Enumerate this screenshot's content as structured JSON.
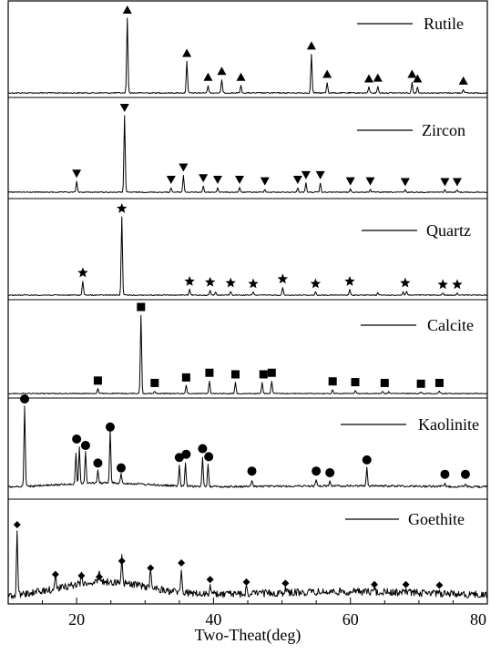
{
  "chart_data": {
    "type": "line",
    "xlabel": "Two-Theat(deg)",
    "ylabel": "",
    "xlim": [
      10,
      80
    ],
    "xticks": [
      20,
      40,
      60,
      80
    ],
    "panels": [
      {
        "name": "Rutile",
        "marker": "triangle-up",
        "peaks": [
          [
            27.4,
            1.0
          ],
          [
            36.1,
            0.42
          ],
          [
            39.2,
            0.1
          ],
          [
            41.2,
            0.18
          ],
          [
            44.0,
            0.1
          ],
          [
            54.3,
            0.52
          ],
          [
            56.6,
            0.14
          ],
          [
            62.7,
            0.08
          ],
          [
            64.0,
            0.09
          ],
          [
            69.0,
            0.14
          ],
          [
            69.8,
            0.08
          ],
          [
            76.5,
            0.05
          ]
        ],
        "markers": [
          [
            27.4,
            1.0
          ],
          [
            36.1,
            0.42
          ],
          [
            39.2,
            0.1
          ],
          [
            41.2,
            0.18
          ],
          [
            44.0,
            0.1
          ],
          [
            54.3,
            0.52
          ],
          [
            56.6,
            0.14
          ],
          [
            62.7,
            0.08
          ],
          [
            64.0,
            0.09
          ],
          [
            69.0,
            0.14
          ],
          [
            69.8,
            0.08
          ],
          [
            76.5,
            0.05
          ]
        ]
      },
      {
        "name": "Zircon",
        "marker": "triangle-down",
        "peaks": [
          [
            20.0,
            0.14
          ],
          [
            27.0,
            1.0
          ],
          [
            33.8,
            0.06
          ],
          [
            35.6,
            0.22
          ],
          [
            38.5,
            0.08
          ],
          [
            40.6,
            0.06
          ],
          [
            43.8,
            0.06
          ],
          [
            47.5,
            0.04
          ],
          [
            52.3,
            0.06
          ],
          [
            53.5,
            0.12
          ],
          [
            55.6,
            0.12
          ],
          [
            60.0,
            0.04
          ],
          [
            62.9,
            0.04
          ],
          [
            68.0,
            0.03
          ],
          [
            73.8,
            0.03
          ],
          [
            75.6,
            0.03
          ]
        ],
        "markers": [
          [
            20.0,
            0.14
          ],
          [
            27.0,
            1.0
          ],
          [
            33.8,
            0.06
          ],
          [
            35.6,
            0.22
          ],
          [
            38.5,
            0.08
          ],
          [
            40.6,
            0.06
          ],
          [
            43.8,
            0.06
          ],
          [
            47.5,
            0.04
          ],
          [
            52.3,
            0.06
          ],
          [
            53.5,
            0.12
          ],
          [
            55.6,
            0.12
          ],
          [
            60.0,
            0.04
          ],
          [
            62.9,
            0.04
          ],
          [
            68.0,
            0.03
          ],
          [
            73.8,
            0.03
          ],
          [
            75.6,
            0.03
          ]
        ]
      },
      {
        "name": "Quartz",
        "marker": "star",
        "peaks": [
          [
            20.9,
            0.18
          ],
          [
            26.6,
            1.0
          ],
          [
            36.5,
            0.07
          ],
          [
            39.5,
            0.06
          ],
          [
            40.3,
            0.04
          ],
          [
            42.5,
            0.05
          ],
          [
            45.8,
            0.04
          ],
          [
            50.1,
            0.1
          ],
          [
            54.9,
            0.04
          ],
          [
            59.9,
            0.07
          ],
          [
            64.0,
            0.03
          ],
          [
            67.7,
            0.04
          ],
          [
            68.2,
            0.05
          ],
          [
            73.5,
            0.03
          ],
          [
            75.6,
            0.03
          ]
        ],
        "markers": [
          [
            20.9,
            0.18
          ],
          [
            26.6,
            1.0
          ],
          [
            36.5,
            0.07
          ],
          [
            39.5,
            0.06
          ],
          [
            42.5,
            0.05
          ],
          [
            45.8,
            0.04
          ],
          [
            50.1,
            0.1
          ],
          [
            54.9,
            0.04
          ],
          [
            59.9,
            0.07
          ],
          [
            68.0,
            0.05
          ],
          [
            73.5,
            0.03
          ],
          [
            75.6,
            0.03
          ]
        ]
      },
      {
        "name": "Calcite",
        "marker": "square",
        "peaks": [
          [
            23.1,
            0.06
          ],
          [
            29.4,
            1.0
          ],
          [
            31.4,
            0.03
          ],
          [
            36.0,
            0.1
          ],
          [
            39.4,
            0.16
          ],
          [
            43.2,
            0.14
          ],
          [
            47.1,
            0.14
          ],
          [
            48.5,
            0.16
          ],
          [
            57.4,
            0.05
          ],
          [
            60.7,
            0.04
          ],
          [
            64.7,
            0.03
          ],
          [
            65.6,
            0.02
          ],
          [
            70.3,
            0.02
          ],
          [
            73.0,
            0.03
          ]
        ],
        "markers": [
          [
            23.1,
            0.06
          ],
          [
            29.4,
            1.0
          ],
          [
            31.4,
            0.03
          ],
          [
            36.0,
            0.1
          ],
          [
            39.4,
            0.16
          ],
          [
            43.2,
            0.14
          ],
          [
            47.3,
            0.14
          ],
          [
            48.5,
            0.16
          ],
          [
            57.4,
            0.05
          ],
          [
            60.7,
            0.04
          ],
          [
            65.0,
            0.03
          ],
          [
            70.3,
            0.02
          ],
          [
            73.0,
            0.03
          ]
        ]
      },
      {
        "name": "Kaolinite",
        "marker": "circle",
        "peaks": [
          [
            12.4,
            1.0
          ],
          [
            19.9,
            0.38
          ],
          [
            20.4,
            0.45
          ],
          [
            21.3,
            0.4
          ],
          [
            23.1,
            0.15
          ],
          [
            24.9,
            0.65
          ],
          [
            26.5,
            0.12
          ],
          [
            35.0,
            0.25
          ],
          [
            35.9,
            0.28
          ],
          [
            38.4,
            0.36
          ],
          [
            39.2,
            0.28
          ],
          [
            45.6,
            0.08
          ],
          [
            55.0,
            0.08
          ],
          [
            57.0,
            0.06
          ],
          [
            62.4,
            0.24
          ],
          [
            73.8,
            0.03
          ],
          [
            76.8,
            0.03
          ]
        ],
        "markers": [
          [
            12.4,
            1.0
          ],
          [
            20.0,
            0.5
          ],
          [
            21.3,
            0.42
          ],
          [
            23.1,
            0.2
          ],
          [
            24.9,
            0.65
          ],
          [
            26.5,
            0.14
          ],
          [
            35.0,
            0.27
          ],
          [
            36.0,
            0.31
          ],
          [
            38.4,
            0.38
          ],
          [
            39.3,
            0.28
          ],
          [
            45.6,
            0.1
          ],
          [
            55.0,
            0.1
          ],
          [
            57.0,
            0.08
          ],
          [
            62.4,
            0.24
          ],
          [
            73.8,
            0.06
          ],
          [
            76.8,
            0.06
          ]
        ]
      },
      {
        "name": "Goethite",
        "marker": "diamond",
        "peaks": [
          [
            11.3,
            1.0
          ],
          [
            16.9,
            0.22
          ],
          [
            20.7,
            0.2
          ],
          [
            23.3,
            0.18
          ],
          [
            26.6,
            0.43
          ],
          [
            30.8,
            0.32
          ],
          [
            35.3,
            0.4
          ],
          [
            39.5,
            0.14
          ],
          [
            44.8,
            0.1
          ],
          [
            50.5,
            0.08
          ],
          [
            63.5,
            0.06
          ],
          [
            68.1,
            0.06
          ],
          [
            73.0,
            0.05
          ]
        ],
        "markers": [
          [
            11.3,
            1.0
          ],
          [
            16.9,
            0.22
          ],
          [
            20.7,
            0.2
          ],
          [
            23.3,
            0.18
          ],
          [
            26.6,
            0.43
          ],
          [
            30.8,
            0.32
          ],
          [
            35.3,
            0.4
          ],
          [
            39.5,
            0.14
          ],
          [
            44.8,
            0.1
          ],
          [
            50.5,
            0.08
          ],
          [
            63.5,
            0.06
          ],
          [
            68.1,
            0.06
          ],
          [
            73.0,
            0.05
          ]
        ]
      }
    ]
  }
}
